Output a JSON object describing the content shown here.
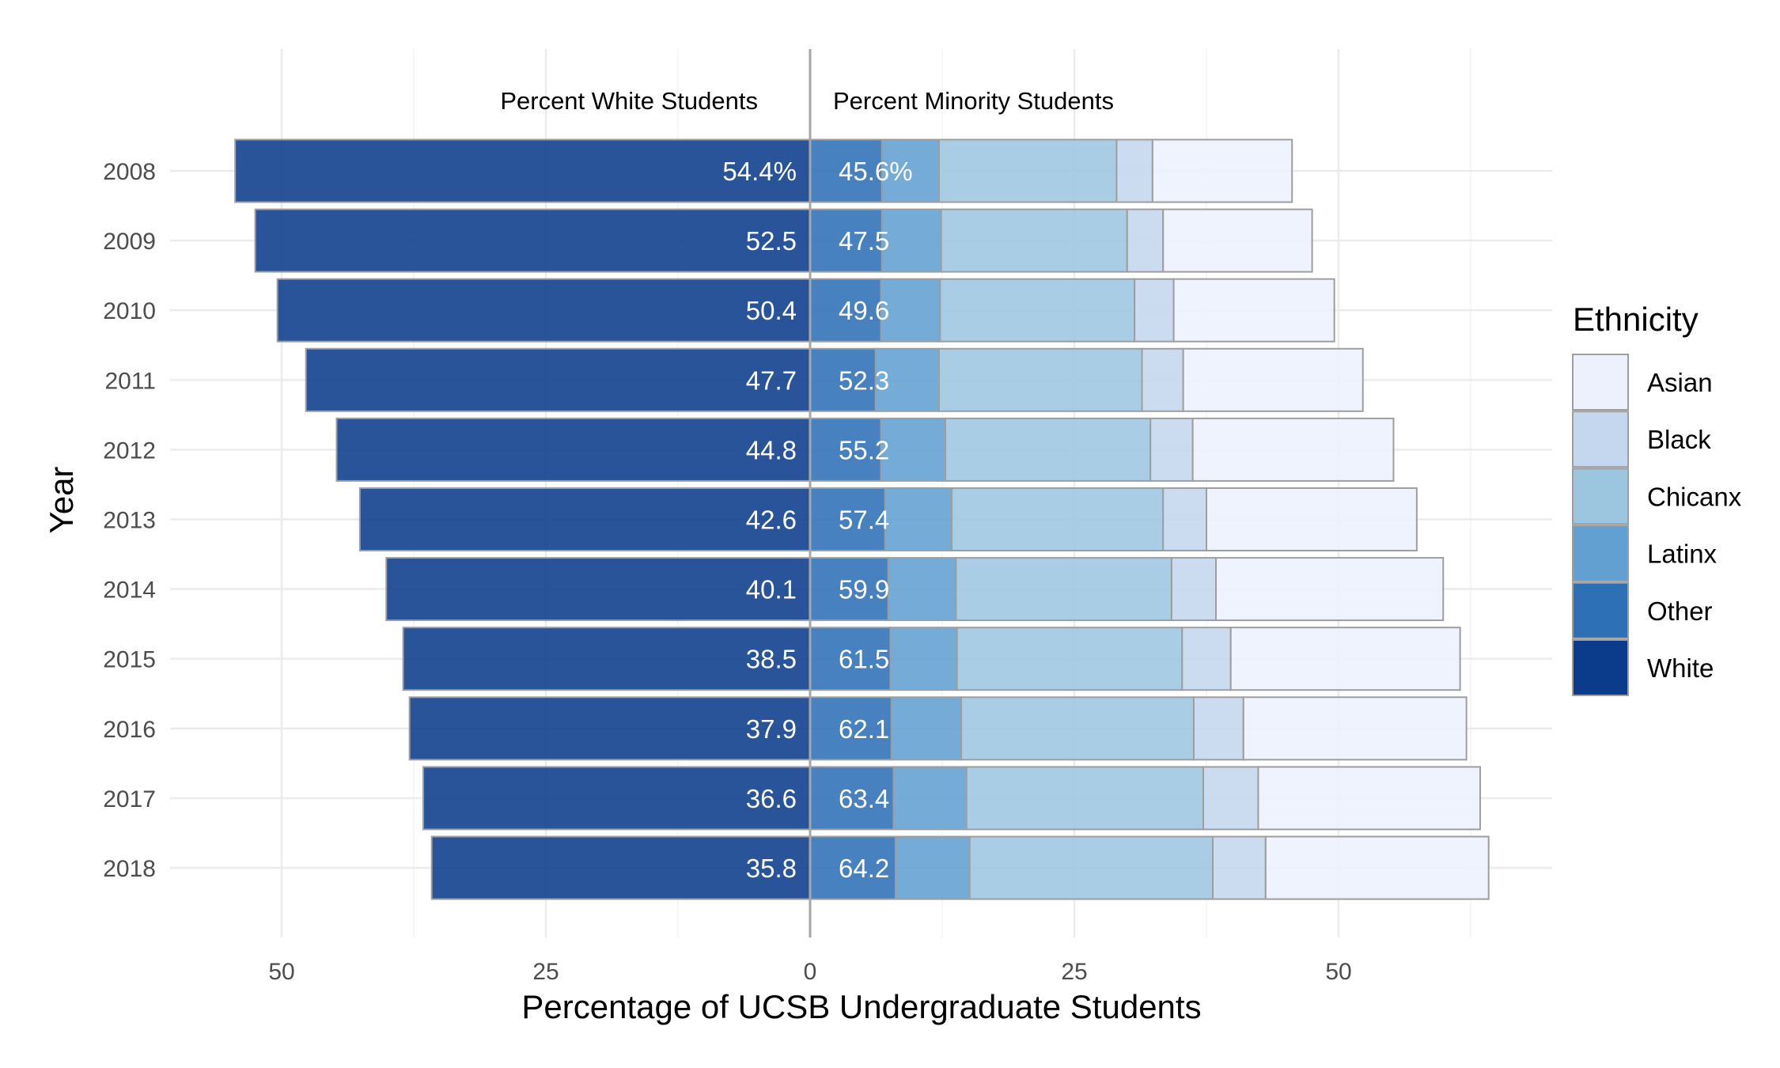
{
  "chart_data": {
    "type": "bar",
    "orientation": "horizontal-diverging",
    "xlabel": "Percentage of UCSB Undergraduate Students",
    "ylabel": "Year",
    "x_tick_labels": [
      "50",
      "25",
      "0",
      "25",
      "50"
    ],
    "xlim": [
      -60,
      70
    ],
    "grid": true,
    "annotations": {
      "left": "Percent White Students",
      "right": "Percent Minority Students"
    },
    "legend": {
      "title": "Ethnicity",
      "position": "right",
      "items": [
        {
          "name": "Asian",
          "color": "#EDF1FD"
        },
        {
          "name": "Black",
          "color": "#C5D7EE"
        },
        {
          "name": "Chicanx",
          "color": "#9CC6E0"
        },
        {
          "name": "Latinx",
          "color": "#62A0D1"
        },
        {
          "name": "Other",
          "color": "#2E70B6"
        },
        {
          "name": "White",
          "color": "#0B3C8C"
        }
      ]
    },
    "categories": [
      "2008",
      "2009",
      "2010",
      "2011",
      "2012",
      "2013",
      "2014",
      "2015",
      "2016",
      "2017",
      "2018"
    ],
    "series": [
      {
        "name": "White",
        "values": [
          54.4,
          52.5,
          50.4,
          47.7,
          44.8,
          42.6,
          40.1,
          38.5,
          37.9,
          36.6,
          35.8
        ]
      },
      {
        "name": "Other",
        "values": [
          6.8,
          6.8,
          6.7,
          6.2,
          6.7,
          7.1,
          7.4,
          7.6,
          7.7,
          7.9,
          8.1
        ]
      },
      {
        "name": "Latinx",
        "values": [
          5.4,
          5.6,
          5.6,
          6.0,
          6.1,
          6.3,
          6.4,
          6.3,
          6.6,
          6.9,
          7.0
        ]
      },
      {
        "name": "Chicanx",
        "values": [
          16.8,
          17.6,
          18.4,
          19.2,
          19.4,
          20.0,
          20.4,
          21.3,
          22.0,
          22.4,
          23.0
        ]
      },
      {
        "name": "Black",
        "values": [
          3.4,
          3.4,
          3.7,
          3.9,
          4.0,
          4.1,
          4.2,
          4.6,
          4.7,
          5.2,
          5.0
        ]
      },
      {
        "name": "Asian",
        "values": [
          13.2,
          14.1,
          15.2,
          17.0,
          19.0,
          19.9,
          21.5,
          21.7,
          21.1,
          21.0,
          21.1
        ]
      }
    ],
    "labels": {
      "white": [
        "54.4%",
        "52.5",
        "50.4",
        "47.7",
        "44.8",
        "42.6",
        "40.1",
        "38.5",
        "37.9",
        "36.6",
        "35.8"
      ],
      "minority": [
        "45.6%",
        "47.5",
        "49.6",
        "52.3",
        "55.2",
        "57.4",
        "59.9",
        "61.5",
        "62.1",
        "63.4",
        "64.2"
      ]
    }
  }
}
